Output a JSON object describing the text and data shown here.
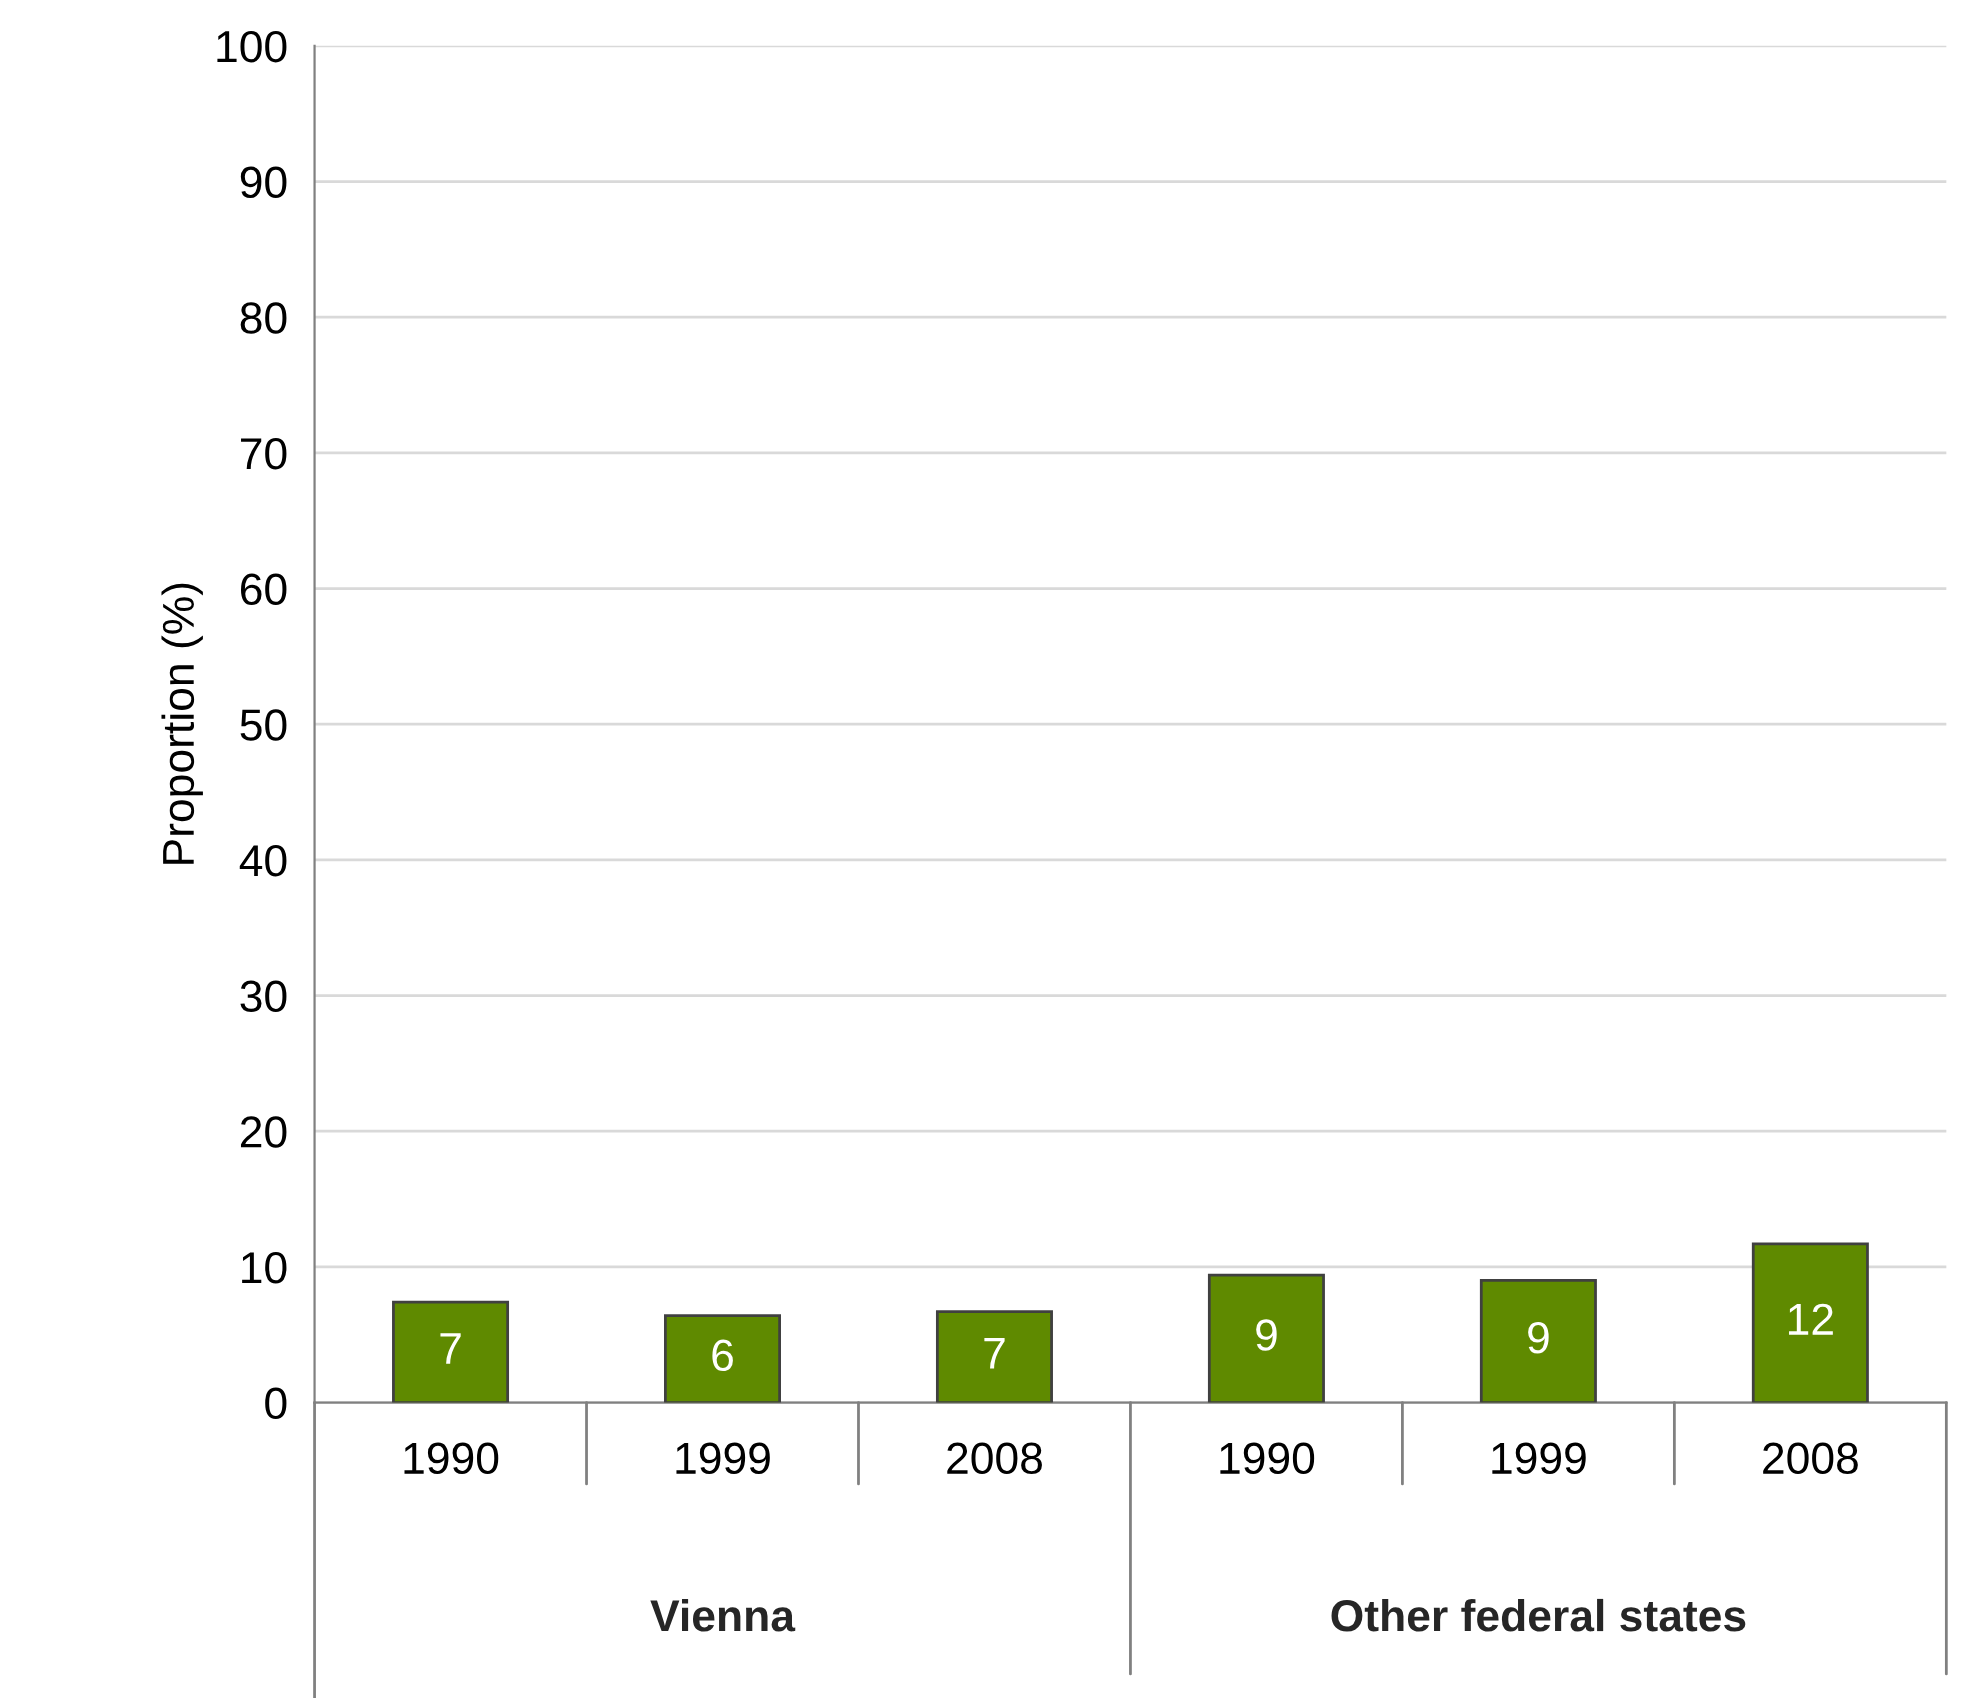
{
  "chart_data": {
    "type": "bar",
    "ylabel": "Proportion (%)",
    "categories": [
      "1990",
      "1999",
      "2008",
      "1990",
      "1999",
      "2008"
    ],
    "values": [
      7.4,
      6.4,
      6.7,
      9.4,
      9.0,
      11.7
    ],
    "value_labels": [
      "7",
      "6",
      "7",
      "9",
      "9",
      "12"
    ],
    "color": "#5f8a00",
    "annotations": [
      "Vienna",
      "Other federal states"
    ],
    "ylim": [
      0,
      100
    ],
    "yticks": [
      0,
      10,
      20,
      30,
      40,
      50,
      60,
      70,
      80,
      90,
      100
    ],
    "grid": "y"
  }
}
